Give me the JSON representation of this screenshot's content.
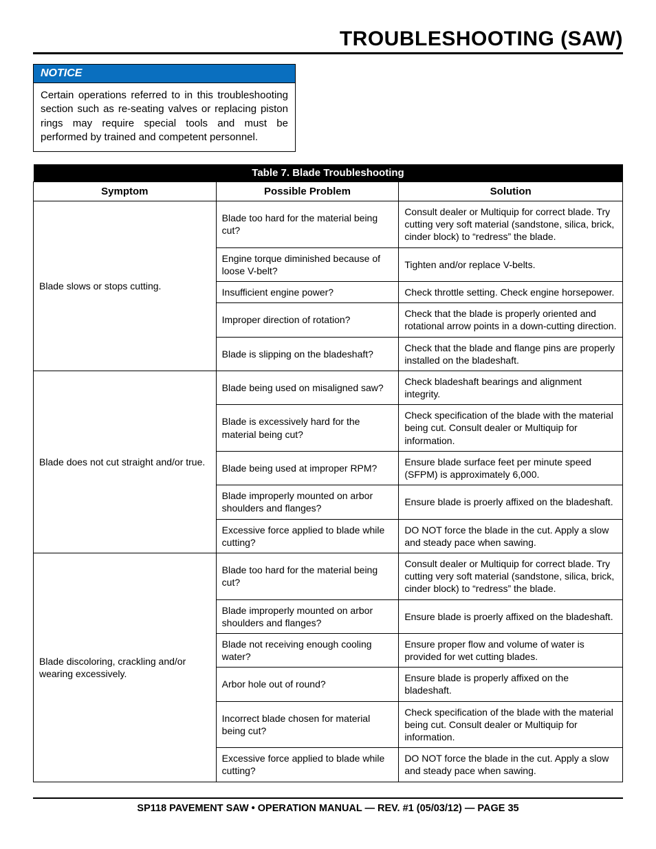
{
  "header": {
    "title": "TROUBLESHOOTING (SAW)"
  },
  "notice": {
    "label": "NOTICE",
    "body": "Certain operations referred to in this troubleshooting section such as re-seating valves or replacing piston rings may require special tools and must be performed by trained and competent personnel."
  },
  "table": {
    "caption": "Table 7. Blade Troubleshooting",
    "columns": {
      "symptom": "Symptom",
      "problem": "Possible Problem",
      "solution": "Solution"
    },
    "groups": [
      {
        "symptom": "Blade slows or stops cutting.",
        "rows": [
          {
            "problem": "Blade too hard for the material being cut?",
            "solution": "Consult dealer or Multiquip for correct blade. Try cutting very soft material (sandstone, silica, brick, cinder block) to “redress” the blade."
          },
          {
            "problem": "Engine torque diminished because of loose V-belt?",
            "solution": "Tighten and/or replace V-belts."
          },
          {
            "problem": "Insufficient engine power?",
            "solution": "Check throttle setting. Check engine horsepower."
          },
          {
            "problem": "Improper direction of rotation?",
            "solution": "Check that the blade is properly oriented and rotational arrow points in a down-cutting direction."
          },
          {
            "problem": "Blade is slipping on the bladeshaft?",
            "solution": "Check that the blade and flange pins are properly installed on the bladeshaft."
          }
        ]
      },
      {
        "symptom": "Blade does not cut straight and/or true.",
        "rows": [
          {
            "problem": "Blade being used on misaligned saw?",
            "solution": "Check bladeshaft bearings and alignment integrity."
          },
          {
            "problem": "Blade is excessively hard for the material being cut?",
            "solution": "Check specification of the blade with the material being cut. Consult dealer or Multiquip for information."
          },
          {
            "problem": "Blade being used at improper RPM?",
            "solution": "Ensure blade surface feet per minute speed (SFPM) is approximately 6,000."
          },
          {
            "problem": "Blade improperly mounted on arbor shoulders and flanges?",
            "solution": "Ensure blade is proerly affixed on the bladeshaft."
          },
          {
            "problem": "Excessive force applied to blade while cutting?",
            "solution": "DO NOT force the blade in the cut. Apply a slow and steady pace when sawing."
          }
        ]
      },
      {
        "symptom": "Blade discoloring, crackling and/or wearing excessively.",
        "rows": [
          {
            "problem": "Blade too hard for the material being cut?",
            "solution": "Consult dealer or Multiquip for correct blade. Try cutting very soft material (sandstone, silica, brick, cinder block) to “redress” the blade."
          },
          {
            "problem": "Blade improperly mounted on arbor shoulders and flanges?",
            "solution": "Ensure blade is proerly affixed on the bladeshaft."
          },
          {
            "problem": "Blade not receiving enough cooling water?",
            "solution": "Ensure proper flow and volume of water is provided for wet cutting blades."
          },
          {
            "problem": "Arbor hole out of round?",
            "solution": "Ensure blade is properly affixed on the bladeshaft."
          },
          {
            "problem": "Incorrect blade chosen for material being cut?",
            "solution": "Check specification of the blade with the material being cut. Consult dealer or Multiquip for information."
          },
          {
            "problem": "Excessive force applied to blade while cutting?",
            "solution": "DO NOT force the blade in the cut. Apply a slow and steady pace when sawing."
          }
        ]
      }
    ]
  },
  "footer": {
    "text": "SP118 PAVEMENT SAW • OPERATION MANUAL — REV. #1 (05/03/12) — PAGE 35"
  },
  "colors": {
    "notice_bg": "#0a6fbf",
    "caption_bg": "#000000",
    "text": "#000000",
    "page_bg": "#ffffff"
  }
}
